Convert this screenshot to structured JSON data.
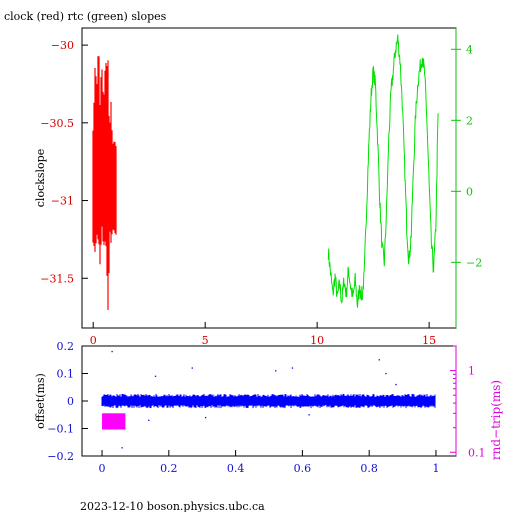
{
  "page": {
    "title": "clock (red) rtc (green) slopes",
    "footer": "2023-12-10  boson.physics.ubc.ca"
  },
  "colors": {
    "clock": "#ff0000",
    "rtc": "#00e000",
    "offset": "#0000ff",
    "rndtrip": "#ff00ff",
    "left_axis_top": "#d40000",
    "right_axis_top": "#10c010",
    "axis_bottom": "#1010d0",
    "right_axis_bottom": "#e000e0"
  },
  "chart_data": [
    {
      "type": "line",
      "title": "clock (red) rtc (green) slopes",
      "xlabel": "",
      "ylabel": "clockslope",
      "xlim": [
        -0.5,
        16.2
      ],
      "ylim": [
        -31.82,
        -29.89
      ],
      "y2lim": [
        -3.85,
        4.6
      ],
      "grid": false,
      "x_ticks": [
        0,
        5,
        10,
        15
      ],
      "x_tick_labels": [
        "0",
        "5",
        "10",
        "15"
      ],
      "y_ticks": [
        -30,
        -30.5,
        -31,
        -31.5
      ],
      "y_tick_labels": [
        "−30",
        "−30.5",
        "−31",
        "−31.5"
      ],
      "y2_ticks": [
        4,
        2,
        0,
        -2
      ],
      "y2_tick_labels": [
        "4",
        "2",
        "0",
        "−2"
      ],
      "series": [
        {
          "name": "clock",
          "axis": "left",
          "description_in_title": "red",
          "x": [
            0.0,
            0.05,
            0.1,
            0.15,
            0.2,
            0.25,
            0.3,
            0.35,
            0.4,
            0.45,
            0.5,
            0.55,
            0.6,
            0.65,
            0.7,
            0.75,
            0.8,
            0.85,
            0.9,
            0.95,
            1.0
          ],
          "y_min": [
            -31.27,
            -31.3,
            -31.35,
            -31.2,
            -31.25,
            -31.25,
            -31.42,
            -31.28,
            -31.15,
            -31.3,
            -31.28,
            -31.25,
            -31.35,
            -31.76,
            -31.5,
            -31.2,
            -31.28,
            -31.2,
            -31.18,
            -31.2,
            -31.22
          ],
          "y_max": [
            -30.55,
            -30.3,
            -30.05,
            -30.35,
            -30.1,
            -30.0,
            -30.4,
            -30.2,
            -30.15,
            -30.35,
            -30.3,
            -30.05,
            -30.2,
            -30.0,
            -30.45,
            -30.5,
            -30.35,
            -30.6,
            -30.65,
            -30.6,
            -30.65
          ]
        },
        {
          "name": "rtc",
          "axis": "right",
          "description_in_title": "green",
          "x": [
            10.5,
            10.6,
            10.7,
            10.8,
            10.9,
            11.0,
            11.1,
            11.2,
            11.3,
            11.4,
            11.5,
            11.6,
            11.7,
            11.8,
            11.9,
            12.0,
            12.1,
            12.2,
            12.3,
            12.4,
            12.5,
            12.6,
            12.7,
            12.8,
            12.9,
            13.0,
            13.1,
            13.2,
            13.3,
            13.4,
            13.5,
            13.6,
            13.7,
            13.8,
            13.9,
            14.0,
            14.1,
            14.2,
            14.3,
            14.4,
            14.5,
            14.6,
            14.7,
            14.8,
            14.9,
            15.0,
            15.1,
            15.2,
            15.3,
            15.4
          ],
          "y": [
            -1.7,
            -2.3,
            -2.9,
            -2.4,
            -3.0,
            -2.6,
            -3.1,
            -2.5,
            -2.9,
            -2.2,
            -2.7,
            -3.0,
            -2.5,
            -3.2,
            -2.7,
            -3.0,
            -2.4,
            -0.6,
            1.2,
            2.6,
            3.4,
            3.0,
            1.5,
            -0.3,
            -1.6,
            -2.0,
            -0.5,
            1.5,
            2.8,
            3.4,
            4.0,
            4.3,
            3.7,
            2.5,
            0.8,
            -1.0,
            -2.0,
            -1.2,
            0.6,
            2.2,
            3.1,
            3.5,
            3.8,
            3.3,
            2.0,
            0.2,
            -1.5,
            -2.2,
            -1.0,
            2.2
          ]
        }
      ]
    },
    {
      "type": "scatter",
      "title": "",
      "xlabel": "",
      "ylabel": "offset(ms)",
      "y2label": "rnd−trip(ms)",
      "xlim": [
        -0.06,
        1.06
      ],
      "ylim": [
        -0.2,
        0.2
      ],
      "y2lim": [
        0.09,
        2.0
      ],
      "y2_scale": "log",
      "grid": false,
      "x_ticks": [
        0,
        0.2,
        0.4,
        0.6,
        0.8,
        1
      ],
      "x_tick_labels": [
        "0",
        "0.2",
        "0.4",
        "0.6",
        "0.8",
        "1"
      ],
      "y_ticks": [
        0.2,
        0.1,
        0,
        -0.1,
        -0.2
      ],
      "y_tick_labels": [
        "0.2",
        "0.1",
        "0",
        "−0.1",
        "−0.2"
      ],
      "y2_ticks": [
        1,
        0.1
      ],
      "y2_tick_labels": [
        "1",
        "0.1"
      ],
      "series": [
        {
          "name": "offset",
          "axis": "left",
          "x_range": [
            0.0,
            1.0
          ],
          "y_center": 0.0,
          "y_band": [
            -0.015,
            0.015
          ],
          "outliers": [
            {
              "x": 0.03,
              "y": 0.18
            },
            {
              "x": 0.16,
              "y": 0.09
            },
            {
              "x": 0.27,
              "y": 0.12
            },
            {
              "x": 0.52,
              "y": 0.11
            },
            {
              "x": 0.57,
              "y": 0.12
            },
            {
              "x": 0.83,
              "y": 0.15
            },
            {
              "x": 0.85,
              "y": 0.1
            },
            {
              "x": 0.88,
              "y": 0.06
            },
            {
              "x": 0.31,
              "y": -0.06
            },
            {
              "x": 0.14,
              "y": -0.07
            },
            {
              "x": 0.06,
              "y": -0.17
            },
            {
              "x": 0.62,
              "y": -0.05
            }
          ]
        },
        {
          "name": "rnd-trip",
          "axis": "right",
          "x_range": [
            0.0,
            0.07
          ],
          "y_range": [
            0.19,
            0.3
          ]
        }
      ]
    }
  ]
}
